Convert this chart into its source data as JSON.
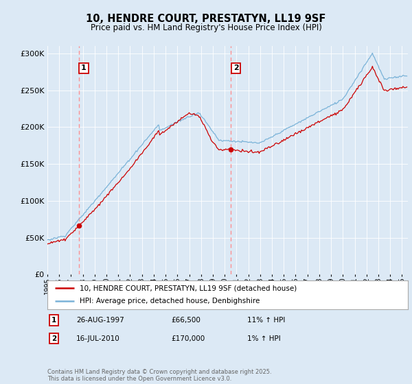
{
  "title": "10, HENDRE COURT, PRESTATYN, LL19 9SF",
  "subtitle": "Price paid vs. HM Land Registry's House Price Index (HPI)",
  "bg_color": "#dce9f5",
  "plot_bg_color": "#dce9f5",
  "hpi_line_color": "#7ab3d8",
  "price_line_color": "#cc0000",
  "marker_color": "#cc0000",
  "dashed_line_color": "#ff8888",
  "ylim": [
    0,
    310000
  ],
  "yticks": [
    0,
    50000,
    100000,
    150000,
    200000,
    250000,
    300000
  ],
  "sale1_x": 1997.65,
  "sale1_price": 66500,
  "sale1_label": "1",
  "sale2_x": 2010.54,
  "sale2_price": 170000,
  "sale2_label": "2",
  "legend_line1": "10, HENDRE COURT, PRESTATYN, LL19 9SF (detached house)",
  "legend_line2": "HPI: Average price, detached house, Denbighshire",
  "annotation1_date": "26-AUG-1997",
  "annotation1_price": "£66,500",
  "annotation1_hpi": "11% ↑ HPI",
  "annotation2_date": "16-JUL-2010",
  "annotation2_price": "£170,000",
  "annotation2_hpi": "1% ↑ HPI",
  "footer": "Contains HM Land Registry data © Crown copyright and database right 2025.\nThis data is licensed under the Open Government Licence v3.0."
}
